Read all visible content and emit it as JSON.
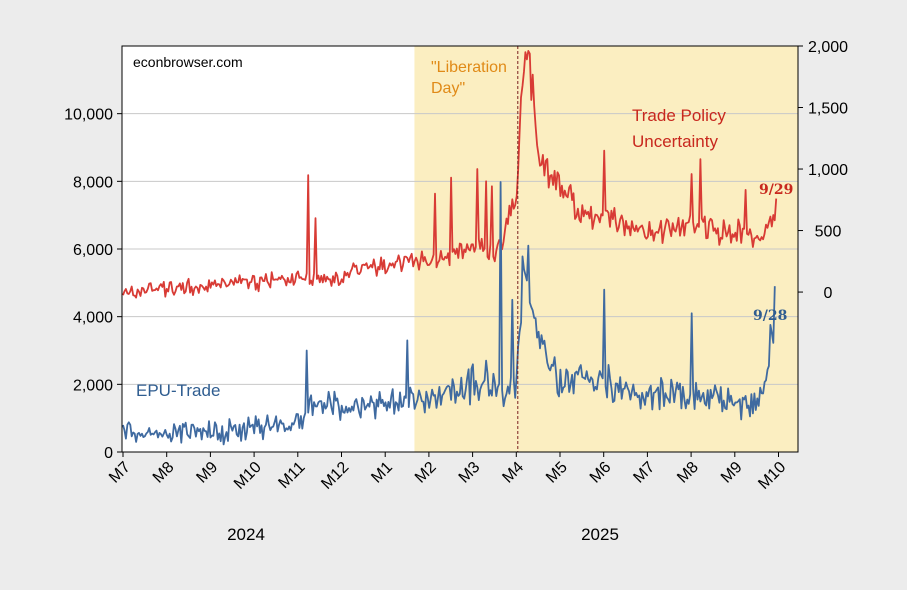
{
  "chart_data": {
    "type": "line",
    "source_label": "econbrowser.com",
    "x_ticks": [
      "M7",
      "M8",
      "M9",
      "M10",
      "M11",
      "M12",
      "M1",
      "M2",
      "M3",
      "M4",
      "M5",
      "M6",
      "M7",
      "M8",
      "M9",
      "M10"
    ],
    "year_labels": [
      "2024",
      "2025"
    ],
    "left_axis": {
      "ticks": [
        "0",
        "2,000",
        "4,000",
        "6,000",
        "8,000",
        "10,000"
      ],
      "ylim": [
        0,
        12000
      ]
    },
    "right_axis": {
      "ticks": [
        "0",
        "500",
        "1,000",
        "1,500",
        "2,000"
      ],
      "ylim": [
        -1300,
        2000
      ]
    },
    "shaded_region": {
      "start": "2025-01-20",
      "end": "2025-09-30",
      "color": "#fbeec1"
    },
    "event_line": {
      "date": "2025-04-02",
      "label": "\"Liberation Day\"",
      "label_lines": [
        "\"Liberation",
        "Day\""
      ],
      "color": "#7a1f1f"
    },
    "annotations": {
      "tpu_lines": [
        "Trade Policy",
        "Uncertainty"
      ],
      "epu_label": "EPU-Trade",
      "tpu_end": "9/29",
      "epu_end": "9/28"
    },
    "series": [
      {
        "name": "Trade Policy Uncertainty",
        "axis": "right",
        "color": "#d83b35",
        "x_start": "2024-07-01",
        "x_end": "2025-09-29",
        "points": [
          [
            0.0,
            0
          ],
          [
            0.4,
            0
          ],
          [
            0.8,
            50
          ],
          [
            1.0,
            20
          ],
          [
            1.5,
            40
          ],
          [
            2.0,
            50
          ],
          [
            3.0,
            80
          ],
          [
            4.0,
            100
          ],
          [
            5.0,
            110
          ],
          [
            5.5,
            230
          ],
          [
            6.0,
            200
          ],
          [
            6.5,
            270
          ],
          [
            7.0,
            230
          ],
          [
            7.5,
            290
          ],
          [
            8.0,
            400
          ],
          [
            8.5,
            300
          ],
          [
            9.0,
            750
          ],
          [
            9.15,
            1700
          ],
          [
            9.3,
            1950
          ],
          [
            9.5,
            1100
          ],
          [
            10.0,
            850
          ],
          [
            10.5,
            600
          ],
          [
            11.0,
            640
          ],
          [
            11.5,
            500
          ],
          [
            12.0,
            480
          ],
          [
            12.5,
            520
          ],
          [
            13.0,
            560
          ],
          [
            13.5,
            500
          ],
          [
            14.0,
            480
          ],
          [
            14.6,
            430
          ],
          [
            15.0,
            760
          ]
        ],
        "noise": 0.22,
        "spikes": [
          [
            4.25,
            950
          ],
          [
            4.4,
            600
          ],
          [
            7.15,
            800
          ],
          [
            7.5,
            930
          ],
          [
            8.1,
            1000
          ],
          [
            8.3,
            900
          ],
          [
            8.45,
            860
          ],
          [
            11.0,
            1150
          ],
          [
            13.0,
            960
          ],
          [
            13.2,
            1080
          ],
          [
            14.25,
            830
          ]
        ]
      },
      {
        "name": "EPU-Trade",
        "axis": "left",
        "color": "#3f6aa0",
        "x_start": "2024-07-01",
        "x_end": "2025-09-28",
        "points": [
          [
            0.0,
            600
          ],
          [
            1.0,
            500
          ],
          [
            2.0,
            600
          ],
          [
            3.0,
            700
          ],
          [
            4.0,
            900
          ],
          [
            4.4,
            1400
          ],
          [
            5.0,
            1300
          ],
          [
            6.0,
            1500
          ],
          [
            7.0,
            1500
          ],
          [
            7.5,
            1700
          ],
          [
            8.0,
            2000
          ],
          [
            8.5,
            1900
          ],
          [
            9.0,
            1900
          ],
          [
            9.15,
            5500
          ],
          [
            9.5,
            3500
          ],
          [
            10.0,
            2000
          ],
          [
            10.5,
            2200
          ],
          [
            11.0,
            2000
          ],
          [
            12.0,
            1700
          ],
          [
            13.0,
            1700
          ],
          [
            14.0,
            1500
          ],
          [
            14.5,
            1300
          ],
          [
            14.7,
            1700
          ],
          [
            14.85,
            3500
          ],
          [
            14.95,
            4900
          ]
        ],
        "noise": 0.3,
        "spikes": [
          [
            4.2,
            3000
          ],
          [
            6.5,
            3300
          ],
          [
            8.3,
            2700
          ],
          [
            8.65,
            7980
          ],
          [
            8.9,
            4500
          ],
          [
            9.28,
            6100
          ],
          [
            11.0,
            4800
          ],
          [
            13.0,
            4100
          ]
        ]
      }
    ]
  }
}
